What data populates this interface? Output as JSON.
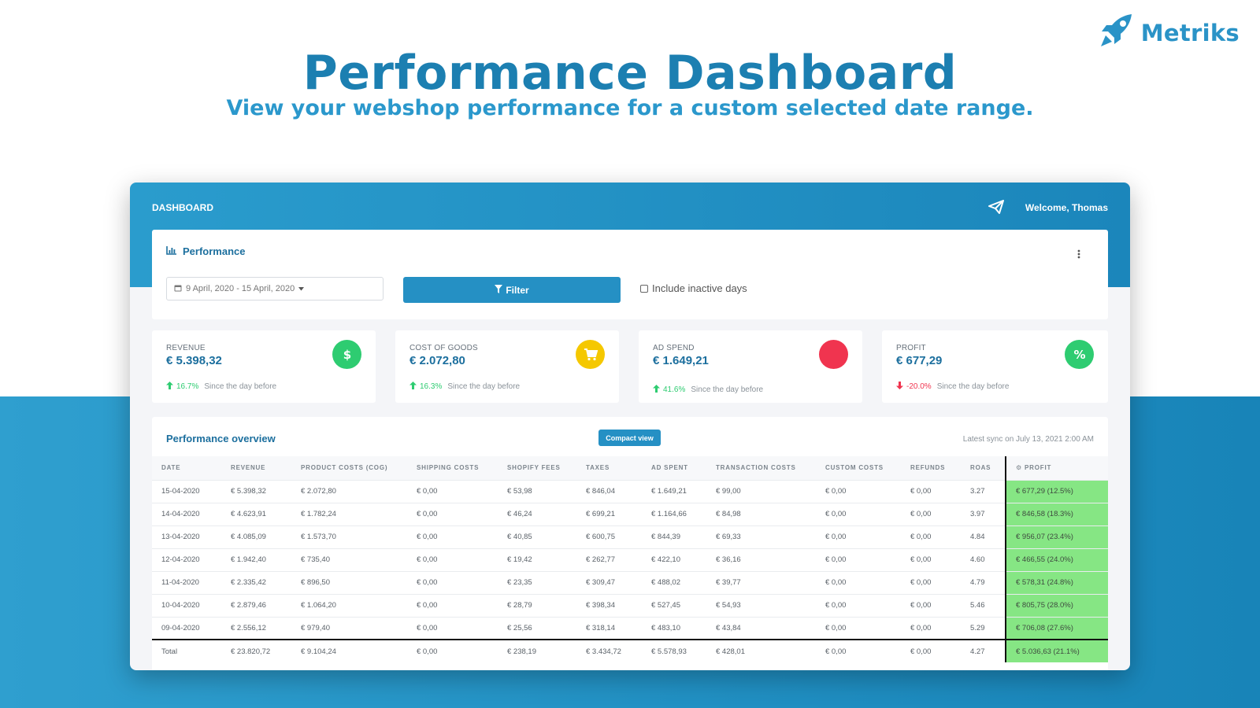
{
  "brand": {
    "name": "Metriks"
  },
  "hero": {
    "title": "Performance Dashboard",
    "subtitle": "View your webshop performance for a custom selected date range."
  },
  "topbar": {
    "title": "DASHBOARD",
    "welcome": "Welcome, Thomas"
  },
  "performance": {
    "title": "Performance",
    "date_range": "9 April, 2020 - 15 April, 2020",
    "filter_label": "Filter",
    "include_inactive_label": "Include inactive days",
    "include_inactive_checked": false
  },
  "stats": [
    {
      "label": "REVENUE",
      "value": "€ 5.398,32",
      "change": "16.7%",
      "direction": "up",
      "since": "Since the day before",
      "icon": "dollar-icon",
      "color": "#2ecc71"
    },
    {
      "label": "COST OF GOODS",
      "value": "€ 2.072,80",
      "change": "16.3%",
      "direction": "up",
      "since": "Since the day before",
      "icon": "cart-icon",
      "color": "#f5c800"
    },
    {
      "label": "AD SPEND",
      "value": "€ 1.649,21",
      "change": "41.6%",
      "direction": "up",
      "since": "Since the day before",
      "icon": "circle-icon",
      "color": "#f0344f"
    },
    {
      "label": "PROFIT",
      "value": "€ 677,29",
      "change": "-20.0%",
      "direction": "down",
      "since": "Since the day before",
      "icon": "percent-icon",
      "color": "#2ecc71"
    }
  ],
  "overview": {
    "title": "Performance overview",
    "compact_label": "Compact view",
    "sync_text": "Latest sync on July 13, 2021 2:00 AM",
    "columns": [
      "DATE",
      "REVENUE",
      "PRODUCT COSTS (COG)",
      "SHIPPING COSTS",
      "SHOPIFY FEES",
      "TAXES",
      "AD SPENT",
      "TRANSACTION COSTS",
      "CUSTOM COSTS",
      "REFUNDS",
      "ROAS",
      "PROFIT"
    ],
    "rows": [
      [
        "15-04-2020",
        "€ 5.398,32",
        "€ 2.072,80",
        "€ 0,00",
        "€ 53,98",
        "€ 846,04",
        "€ 1.649,21",
        "€ 99,00",
        "€ 0,00",
        "€ 0,00",
        "3.27",
        "€ 677,29 (12.5%)"
      ],
      [
        "14-04-2020",
        "€ 4.623,91",
        "€ 1.782,24",
        "€ 0,00",
        "€ 46,24",
        "€ 699,21",
        "€ 1.164,66",
        "€ 84,98",
        "€ 0,00",
        "€ 0,00",
        "3.97",
        "€ 846,58 (18.3%)"
      ],
      [
        "13-04-2020",
        "€ 4.085,09",
        "€ 1.573,70",
        "€ 0,00",
        "€ 40,85",
        "€ 600,75",
        "€ 844,39",
        "€ 69,33",
        "€ 0,00",
        "€ 0,00",
        "4.84",
        "€ 956,07 (23.4%)"
      ],
      [
        "12-04-2020",
        "€ 1.942,40",
        "€ 735,40",
        "€ 0,00",
        "€ 19,42",
        "€ 262,77",
        "€ 422,10",
        "€ 36,16",
        "€ 0,00",
        "€ 0,00",
        "4.60",
        "€ 466,55 (24.0%)"
      ],
      [
        "11-04-2020",
        "€ 2.335,42",
        "€ 896,50",
        "€ 0,00",
        "€ 23,35",
        "€ 309,47",
        "€ 488,02",
        "€ 39,77",
        "€ 0,00",
        "€ 0,00",
        "4.79",
        "€ 578,31 (24.8%)"
      ],
      [
        "10-04-2020",
        "€ 2.879,46",
        "€ 1.064,20",
        "€ 0,00",
        "€ 28,79",
        "€ 398,34",
        "€ 527,45",
        "€ 54,93",
        "€ 0,00",
        "€ 0,00",
        "5.46",
        "€ 805,75 (28.0%)"
      ],
      [
        "09-04-2020",
        "€ 2.556,12",
        "€ 979,40",
        "€ 0,00",
        "€ 25,56",
        "€ 318,14",
        "€ 483,10",
        "€ 43,84",
        "€ 0,00",
        "€ 0,00",
        "5.29",
        "€ 706,08 (27.6%)"
      ]
    ],
    "total": [
      "Total",
      "€ 23.820,72",
      "€ 9.104,24",
      "€ 0,00",
      "€ 238,19",
      "€ 3.434,72",
      "€ 5.578,93",
      "€ 428,01",
      "€ 0,00",
      "€ 0,00",
      "4.27",
      "€ 5.036,63 (21.1%)"
    ]
  }
}
